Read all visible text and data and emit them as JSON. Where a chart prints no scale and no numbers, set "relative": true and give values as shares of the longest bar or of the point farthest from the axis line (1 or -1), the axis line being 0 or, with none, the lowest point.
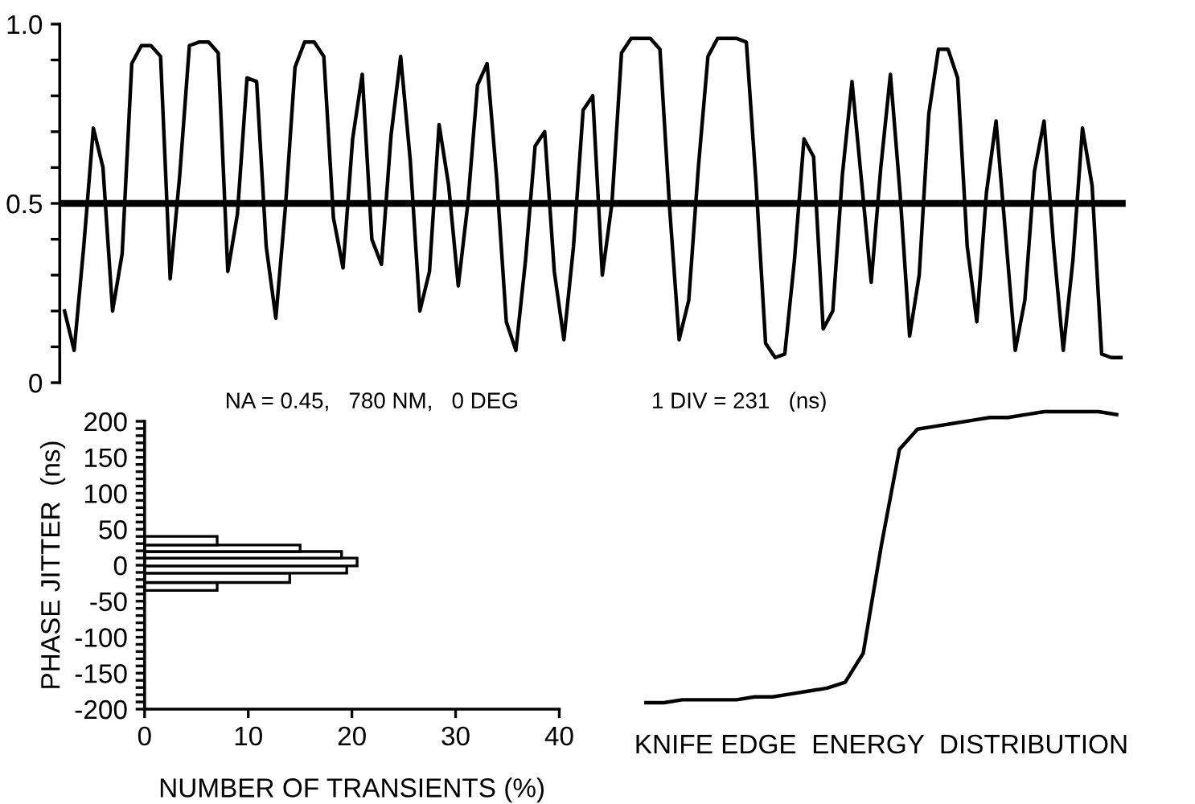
{
  "chart_data": [
    {
      "type": "line",
      "categories": [
        null,
        null,
        null,
        null,
        null,
        null,
        null,
        null,
        null,
        null,
        null,
        null,
        null,
        null,
        null,
        null,
        null,
        null,
        null,
        null,
        null,
        null,
        null,
        null,
        null,
        null,
        null,
        null,
        null,
        null,
        null,
        null,
        null,
        null,
        null,
        null,
        null,
        null,
        null,
        null,
        null,
        null,
        null,
        null,
        null,
        null,
        null,
        null,
        null,
        null,
        null,
        null,
        null,
        null,
        null,
        null,
        null,
        null,
        null,
        null,
        null,
        null,
        null,
        null,
        null,
        null,
        null,
        null,
        null,
        null,
        null,
        null,
        null,
        null,
        null,
        null,
        null,
        null,
        null,
        null,
        null,
        null,
        null,
        null,
        null,
        null,
        null,
        null,
        null,
        null,
        null,
        null,
        null,
        null,
        null,
        null,
        null,
        null,
        null,
        null,
        null,
        null,
        null,
        null,
        null,
        null,
        null,
        null,
        null,
        null,
        null
      ],
      "series": [
        {
          "color": "#000000",
          "values": [
            0.2,
            0.09,
            0.38,
            0.71,
            0.6,
            0.2,
            0.36,
            0.89,
            0.94,
            0.94,
            0.91,
            0.29,
            0.58,
            0.94,
            0.95,
            0.95,
            0.92,
            0.31,
            0.47,
            0.85,
            0.84,
            0.38,
            0.18,
            0.49,
            0.88,
            0.95,
            0.95,
            0.91,
            0.46,
            0.32,
            0.68,
            0.86,
            0.4,
            0.33,
            0.69,
            0.91,
            0.62,
            0.2,
            0.31,
            0.72,
            0.55,
            0.27,
            0.5,
            0.83,
            0.89,
            0.57,
            0.17,
            0.09,
            0.34,
            0.66,
            0.7,
            0.31,
            0.12,
            0.38,
            0.76,
            0.8,
            0.3,
            0.5,
            0.92,
            0.96,
            0.96,
            0.96,
            0.93,
            0.49,
            0.12,
            0.23,
            0.6,
            0.91,
            0.96,
            0.96,
            0.96,
            0.95,
            0.56,
            0.11,
            0.07,
            0.08,
            0.34,
            0.68,
            0.63,
            0.15,
            0.2,
            0.58,
            0.84,
            0.56,
            0.28,
            0.6,
            0.86,
            0.53,
            0.13,
            0.3,
            0.75,
            0.93,
            0.93,
            0.85,
            0.38,
            0.17,
            0.53,
            0.73,
            0.41,
            0.09,
            0.23,
            0.59,
            0.73,
            0.38,
            0.09,
            0.34,
            0.71,
            0.55,
            0.08,
            0.07,
            0.07
          ]
        }
      ],
      "ylim": [
        0,
        1
      ],
      "yticks": [
        0,
        {
          "value": 0.1,
          "label": null
        },
        {
          "value": 0.2,
          "label": null
        },
        {
          "value": 0.3,
          "label": null
        },
        {
          "value": 0.4,
          "label": null
        },
        0.5,
        {
          "value": 0.6,
          "label": null
        },
        {
          "value": 0.7,
          "label": null
        },
        {
          "value": 0.8,
          "label": null
        },
        {
          "value": 0.9,
          "label": null
        },
        {
          "value": 1,
          "label": "1.0"
        }
      ],
      "tick_labels": "y",
      "ref_lines": [
        {
          "axis": "y",
          "value": 0.5,
          "color": "#000000"
        }
      ],
      "annotations": [
        "NA = 0.45,   780 NM,   0 DEG",
        "1 DIV = 231   (ns)"
      ]
    },
    {
      "type": "histogram",
      "orientation": "horizontal",
      "bins": [
        -35,
        -24,
        -11,
        -1,
        10,
        19,
        28,
        40
      ],
      "values": [
        7,
        14,
        19.5,
        20.5,
        19,
        15,
        7
      ],
      "color": "#ffffff",
      "xlim": [
        0,
        40
      ],
      "xticks": [
        0,
        10,
        20,
        30,
        40
      ],
      "ylim": [
        -200,
        200
      ],
      "yticks": [
        -200,
        {
          "value": -190,
          "label": null
        },
        {
          "value": -180,
          "label": null
        },
        {
          "value": -170,
          "label": null
        },
        {
          "value": -160,
          "label": null
        },
        -150,
        {
          "value": -140,
          "label": null
        },
        {
          "value": -130,
          "label": null
        },
        {
          "value": -120,
          "label": null
        },
        {
          "value": -110,
          "label": null
        },
        -100,
        {
          "value": -90,
          "label": null
        },
        {
          "value": -80,
          "label": null
        },
        {
          "value": -70,
          "label": null
        },
        {
          "value": -60,
          "label": null
        },
        -50,
        {
          "value": -40,
          "label": null
        },
        {
          "value": -30,
          "label": null
        },
        {
          "value": -20,
          "label": null
        },
        {
          "value": -10,
          "label": null
        },
        0,
        {
          "value": 10,
          "label": null
        },
        {
          "value": 20,
          "label": null
        },
        {
          "value": 30,
          "label": null
        },
        {
          "value": 40,
          "label": null
        },
        50,
        {
          "value": 60,
          "label": null
        },
        {
          "value": 70,
          "label": null
        },
        {
          "value": 80,
          "label": null
        },
        {
          "value": 90,
          "label": null
        },
        100,
        {
          "value": 110,
          "label": null
        },
        {
          "value": 120,
          "label": null
        },
        {
          "value": 130,
          "label": null
        },
        {
          "value": 140,
          "label": null
        },
        150,
        {
          "value": 160,
          "label": null
        },
        {
          "value": 170,
          "label": null
        },
        {
          "value": 180,
          "label": null
        },
        {
          "value": 190,
          "label": null
        },
        200
      ],
      "xlabel": "NUMBER OF TRANSIENTS (%)",
      "ylabel": "PHASE JITTER  (ns)"
    },
    {
      "type": "line",
      "relative": true,
      "categories": [
        null,
        null,
        null,
        null,
        null,
        null,
        null,
        null,
        null,
        null,
        null,
        null,
        null,
        null,
        null,
        null,
        null,
        null,
        null,
        null,
        null,
        null,
        null,
        null,
        null,
        null,
        null
      ],
      "series": [
        {
          "color": "#000000",
          "values": [
            0,
            0,
            0.01,
            0.01,
            0.01,
            0.01,
            0.02,
            0.02,
            0.03,
            0.04,
            0.05,
            0.07,
            0.17,
            0.54,
            0.87,
            0.94,
            0.95,
            0.96,
            0.97,
            0.98,
            0.98,
            0.99,
            1,
            1,
            1,
            1,
            0.99
          ]
        }
      ],
      "xlabel": "KNIFE EDGE  ENERGY  DISTRIBUTION"
    }
  ]
}
